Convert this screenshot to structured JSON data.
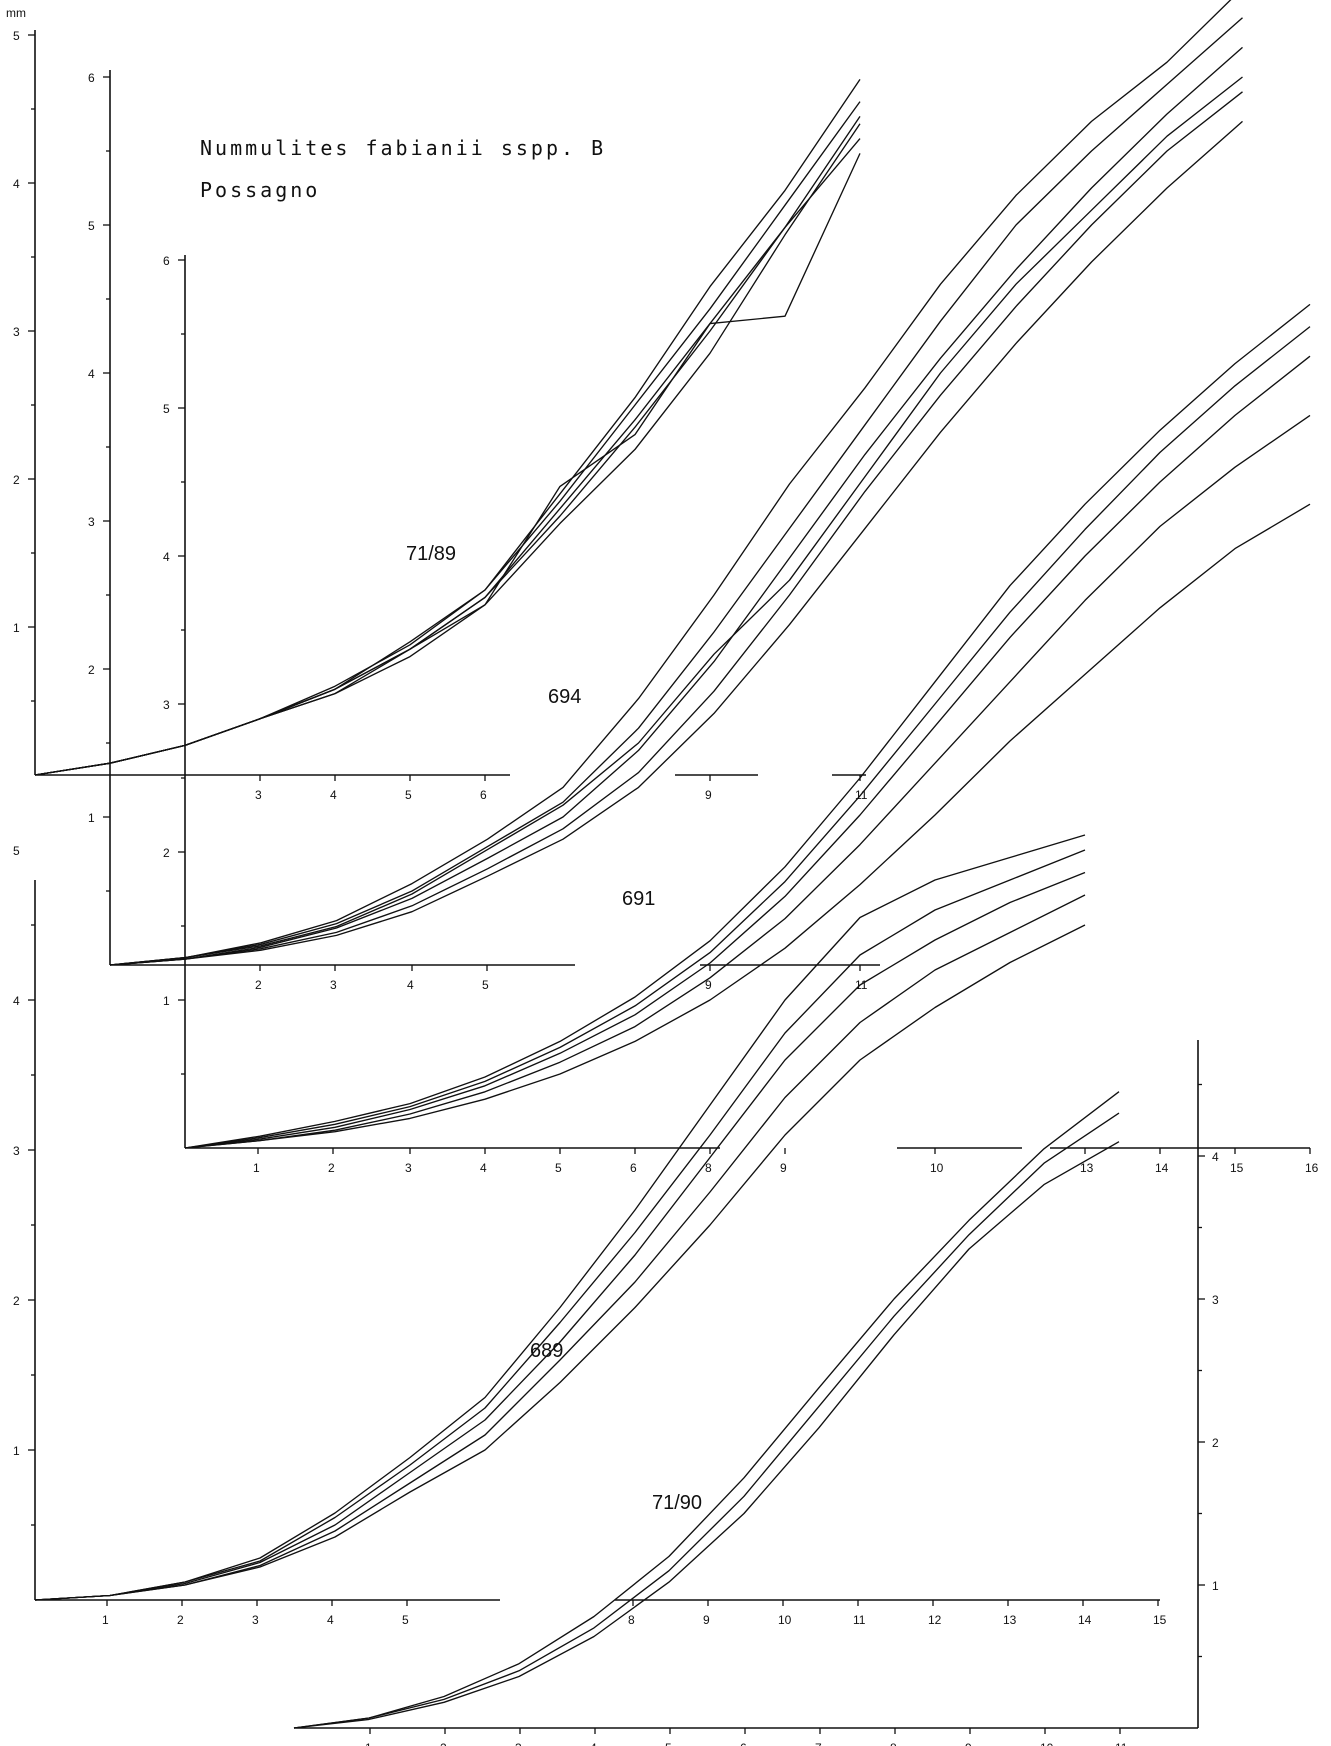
{
  "title": {
    "line1": "Nummulites fabianii sspp. B",
    "line2": "Possagno",
    "unit": "mm"
  },
  "chart_data": [
    {
      "type": "line",
      "label": "71/89",
      "yticks": [
        "1",
        "2",
        "3",
        "4",
        "5"
      ],
      "xticks": [
        "3",
        "4",
        "5",
        "6",
        "9",
        "11"
      ],
      "series": [
        {
          "x": [
            0,
            1,
            2,
            3,
            4,
            5,
            6,
            7,
            8,
            9,
            10,
            11
          ],
          "y": [
            0,
            0.08,
            0.2,
            0.38,
            0.58,
            0.9,
            1.25,
            1.85,
            2.5,
            3.15,
            3.85,
            4.55
          ]
        },
        {
          "x": [
            0,
            1,
            2,
            3,
            4,
            5,
            6,
            7,
            8,
            9,
            10,
            11
          ],
          "y": [
            0,
            0.08,
            0.2,
            0.38,
            0.58,
            0.85,
            1.2,
            1.75,
            2.35,
            3.0,
            3.7,
            4.45
          ]
        },
        {
          "x": [
            0,
            1,
            2,
            3,
            4,
            5,
            6,
            7,
            8,
            9,
            10,
            11
          ],
          "y": [
            0,
            0.08,
            0.2,
            0.38,
            0.6,
            0.88,
            1.25,
            1.9,
            2.55,
            3.3,
            3.95,
            4.7
          ]
        },
        {
          "x": [
            0,
            1,
            2,
            3,
            4,
            5,
            6,
            7,
            8,
            9,
            10,
            11
          ],
          "y": [
            0,
            0.08,
            0.2,
            0.38,
            0.58,
            0.85,
            1.2,
            1.8,
            2.4,
            3.05,
            3.7,
            4.3
          ]
        },
        {
          "x": [
            0,
            1,
            2,
            3,
            4,
            5,
            6,
            7,
            8,
            9,
            10,
            11
          ],
          "y": [
            0,
            0.08,
            0.2,
            0.38,
            0.55,
            0.8,
            1.15,
            1.7,
            2.2,
            2.85,
            3.65,
            4.4
          ]
        },
        {
          "x": [
            0,
            1,
            2,
            3,
            4,
            5,
            6,
            7,
            8,
            9,
            10,
            11
          ],
          "y": [
            0,
            0.08,
            0.2,
            0.38,
            0.55,
            0.85,
            1.15,
            1.95,
            2.3,
            3.05,
            3.1,
            4.2
          ]
        }
      ]
    },
    {
      "type": "line",
      "label": "694",
      "yticks": [
        "1",
        "2",
        "3",
        "4",
        "5",
        "6"
      ],
      "xticks": [
        "2",
        "3",
        "4",
        "5",
        "9",
        "11"
      ],
      "series": [
        {
          "x": [
            0,
            1,
            2,
            3,
            4,
            5,
            6,
            7,
            8,
            9,
            10,
            11,
            12,
            13,
            14,
            15
          ],
          "y": [
            0,
            0.05,
            0.15,
            0.3,
            0.55,
            0.85,
            1.2,
            1.8,
            2.5,
            3.25,
            3.9,
            4.6,
            5.2,
            5.7,
            6.1,
            6.6
          ]
        },
        {
          "x": [
            0,
            1,
            2,
            3,
            4,
            5,
            6,
            7,
            8,
            9,
            10,
            11,
            12,
            13,
            14,
            15
          ],
          "y": [
            0,
            0.05,
            0.14,
            0.28,
            0.5,
            0.8,
            1.1,
            1.6,
            2.25,
            2.95,
            3.65,
            4.35,
            5.0,
            5.5,
            5.95,
            6.4
          ]
        },
        {
          "x": [
            0,
            1,
            2,
            3,
            4,
            5,
            6,
            7,
            8,
            9,
            10,
            11,
            12,
            13,
            14,
            15
          ],
          "y": [
            0,
            0.04,
            0.12,
            0.25,
            0.45,
            0.72,
            1.0,
            1.45,
            2.05,
            2.75,
            3.45,
            4.1,
            4.7,
            5.25,
            5.75,
            6.2
          ]
        },
        {
          "x": [
            0,
            1,
            2,
            3,
            4,
            5,
            6,
            7,
            8,
            9,
            10,
            11,
            12,
            13,
            14,
            15
          ],
          "y": [
            0,
            0.04,
            0.11,
            0.22,
            0.4,
            0.65,
            0.92,
            1.3,
            1.85,
            2.5,
            3.2,
            3.85,
            4.45,
            5.0,
            5.5,
            5.9
          ]
        },
        {
          "x": [
            0,
            1,
            2,
            3,
            4,
            5,
            6,
            7,
            8,
            9,
            10,
            11,
            12,
            13,
            14,
            15
          ],
          "y": [
            0,
            0.04,
            0.1,
            0.2,
            0.36,
            0.6,
            0.85,
            1.2,
            1.7,
            2.3,
            2.95,
            3.6,
            4.2,
            4.75,
            5.25,
            5.7
          ]
        },
        {
          "x": [
            0,
            1,
            2,
            3,
            4,
            5,
            6,
            7,
            8,
            9,
            10,
            11,
            12,
            13,
            14,
            15
          ],
          "y": [
            0,
            0.05,
            0.13,
            0.26,
            0.48,
            0.78,
            1.08,
            1.5,
            2.1,
            2.6,
            3.3,
            4.0,
            4.6,
            5.1,
            5.6,
            6.0
          ]
        }
      ]
    },
    {
      "type": "line",
      "label": "691",
      "yticks": [
        "1",
        "2",
        "3",
        "4",
        "5",
        "6"
      ],
      "xticks": [
        "1",
        "2",
        "3",
        "4",
        "5",
        "6",
        "8",
        "9",
        "10",
        "13",
        "14",
        "15",
        "16"
      ],
      "series": [
        {
          "x": [
            0,
            1,
            2,
            3,
            4,
            5,
            6,
            7,
            8,
            9,
            10,
            11,
            12,
            13,
            14,
            15
          ],
          "y": [
            0,
            0.08,
            0.18,
            0.3,
            0.48,
            0.72,
            1.02,
            1.4,
            1.9,
            2.5,
            3.15,
            3.8,
            4.35,
            4.85,
            5.3,
            5.7
          ]
        },
        {
          "x": [
            0,
            1,
            2,
            3,
            4,
            5,
            6,
            7,
            8,
            9,
            10,
            11,
            12,
            13,
            14,
            15
          ],
          "y": [
            0,
            0.07,
            0.16,
            0.28,
            0.45,
            0.68,
            0.96,
            1.32,
            1.8,
            2.38,
            3.0,
            3.62,
            4.18,
            4.7,
            5.15,
            5.55
          ]
        },
        {
          "x": [
            0,
            1,
            2,
            3,
            4,
            5,
            6,
            7,
            8,
            9,
            10,
            11,
            12,
            13,
            14,
            15
          ],
          "y": [
            0,
            0.06,
            0.14,
            0.26,
            0.42,
            0.64,
            0.9,
            1.25,
            1.7,
            2.25,
            2.85,
            3.45,
            4.0,
            4.5,
            4.95,
            5.35
          ]
        },
        {
          "x": [
            0,
            1,
            2,
            3,
            4,
            5,
            6,
            7,
            8,
            9,
            10,
            11,
            12,
            13,
            14,
            15
          ],
          "y": [
            0,
            0.05,
            0.12,
            0.23,
            0.38,
            0.58,
            0.82,
            1.15,
            1.55,
            2.05,
            2.6,
            3.15,
            3.7,
            4.2,
            4.6,
            4.95
          ]
        },
        {
          "x": [
            0,
            1,
            2,
            3,
            4,
            5,
            6,
            7,
            8,
            9,
            10,
            11,
            12,
            13,
            14,
            15
          ],
          "y": [
            0,
            0.05,
            0.11,
            0.2,
            0.33,
            0.5,
            0.72,
            1.0,
            1.35,
            1.78,
            2.25,
            2.75,
            3.2,
            3.65,
            4.05,
            4.35
          ]
        }
      ]
    },
    {
      "type": "line",
      "label": "689",
      "yticks": [
        "1",
        "2",
        "3",
        "4",
        "5"
      ],
      "xticks": [
        "1",
        "2",
        "3",
        "4",
        "5",
        "8",
        "9",
        "10",
        "11",
        "12",
        "13",
        "14",
        "15"
      ],
      "series": [
        {
          "x": [
            0,
            1,
            2,
            3,
            4,
            5,
            6,
            7,
            8,
            9,
            10,
            11,
            12,
            13,
            14
          ],
          "y": [
            0,
            0.03,
            0.12,
            0.28,
            0.58,
            0.95,
            1.35,
            1.95,
            2.6,
            3.3,
            4.0,
            4.55,
            4.8,
            4.95,
            5.1
          ]
        },
        {
          "x": [
            0,
            1,
            2,
            3,
            4,
            5,
            6,
            7,
            8,
            9,
            10,
            11,
            12,
            13,
            14
          ],
          "y": [
            0,
            0.03,
            0.12,
            0.26,
            0.55,
            0.9,
            1.28,
            1.85,
            2.45,
            3.1,
            3.78,
            4.3,
            4.6,
            4.8,
            5.0
          ]
        },
        {
          "x": [
            0,
            1,
            2,
            3,
            4,
            5,
            6,
            7,
            8,
            9,
            10,
            11,
            12,
            13,
            14
          ],
          "y": [
            0,
            0.03,
            0.11,
            0.25,
            0.5,
            0.85,
            1.2,
            1.72,
            2.3,
            2.95,
            3.6,
            4.1,
            4.4,
            4.65,
            4.85
          ]
        },
        {
          "x": [
            0,
            1,
            2,
            3,
            4,
            5,
            6,
            7,
            8,
            9,
            10,
            11,
            12,
            13,
            14
          ],
          "y": [
            0,
            0.03,
            0.1,
            0.23,
            0.46,
            0.78,
            1.1,
            1.6,
            2.12,
            2.72,
            3.35,
            3.85,
            4.2,
            4.45,
            4.7
          ]
        },
        {
          "x": [
            0,
            1,
            2,
            3,
            4,
            5,
            6,
            7,
            8,
            9,
            10,
            11,
            12,
            13,
            14
          ],
          "y": [
            0,
            0.03,
            0.1,
            0.22,
            0.42,
            0.72,
            1.0,
            1.45,
            1.95,
            2.5,
            3.1,
            3.6,
            3.95,
            4.25,
            4.5
          ]
        }
      ]
    },
    {
      "type": "line",
      "label": "71/90",
      "yticks": [
        "1",
        "2",
        "3",
        "4"
      ],
      "xticks": [
        "1",
        "2",
        "3",
        "4",
        "5",
        "6",
        "7",
        "8",
        "9",
        "10",
        "11"
      ],
      "series": [
        {
          "x": [
            0,
            1,
            2,
            3,
            4,
            5,
            6,
            7,
            8,
            9,
            10,
            11
          ],
          "y": [
            0,
            0.07,
            0.22,
            0.45,
            0.78,
            1.2,
            1.75,
            2.38,
            3.0,
            3.55,
            4.05,
            4.45
          ]
        },
        {
          "x": [
            0,
            1,
            2,
            3,
            4,
            5,
            6,
            7,
            8,
            9,
            10,
            11
          ],
          "y": [
            0,
            0.07,
            0.2,
            0.4,
            0.7,
            1.1,
            1.62,
            2.25,
            2.88,
            3.45,
            3.95,
            4.3
          ]
        },
        {
          "x": [
            0,
            1,
            2,
            3,
            4,
            5,
            6,
            7,
            8,
            9,
            10,
            11
          ],
          "y": [
            0,
            0.06,
            0.18,
            0.36,
            0.64,
            1.02,
            1.5,
            2.1,
            2.75,
            3.35,
            3.8,
            4.1
          ]
        }
      ]
    }
  ]
}
